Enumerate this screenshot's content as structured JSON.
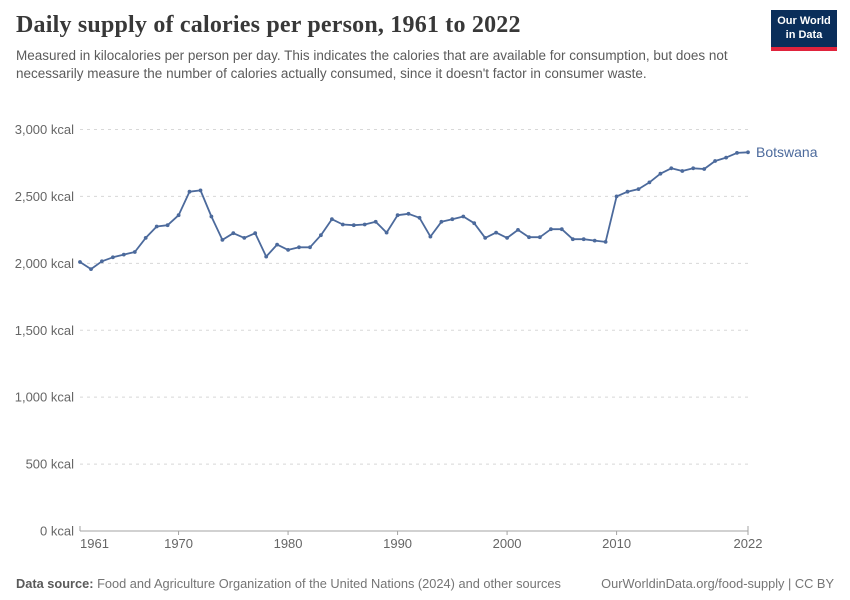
{
  "header": {
    "title": "Daily supply of calories per person, 1961 to 2022",
    "subtitle": "Measured in kilocalories per person per day. This indicates the calories that are available for consumption, but does not necessarily measure the number of calories actually consumed, since it doesn't factor in consumer waste.",
    "logo": {
      "line1": "Our World",
      "line2": "in Data"
    }
  },
  "chart_data": {
    "type": "line",
    "title": "Daily supply of calories per person, 1961 to 2022",
    "xlabel": "",
    "ylabel": "",
    "ylim": [
      0,
      3000
    ],
    "ytick_values": [
      0,
      500,
      1000,
      1500,
      2000,
      2500,
      3000
    ],
    "ytick_labels": [
      "0 kcal",
      "500 kcal",
      "1,000 kcal",
      "1,500 kcal",
      "2,000 kcal",
      "2,500 kcal",
      "3,000 kcal"
    ],
    "xticks": [
      1961,
      1970,
      1980,
      1990,
      2000,
      2010,
      2022
    ],
    "grid": "horizontal-dashed",
    "legend_position": "end-of-line-label",
    "x": [
      1961,
      1962,
      1963,
      1964,
      1965,
      1966,
      1967,
      1968,
      1969,
      1970,
      1971,
      1972,
      1973,
      1974,
      1975,
      1976,
      1977,
      1978,
      1979,
      1980,
      1981,
      1982,
      1983,
      1984,
      1985,
      1986,
      1987,
      1988,
      1989,
      1990,
      1991,
      1992,
      1993,
      1994,
      1995,
      1996,
      1997,
      1998,
      1999,
      2000,
      2001,
      2002,
      2003,
      2004,
      2005,
      2006,
      2007,
      2008,
      2009,
      2010,
      2011,
      2012,
      2013,
      2014,
      2015,
      2016,
      2017,
      2018,
      2019,
      2020,
      2021,
      2022
    ],
    "series": [
      {
        "name": "Botswana",
        "values": [
          2010,
          1957,
          2015,
          2045,
          2065,
          2085,
          2190,
          2275,
          2285,
          2360,
          2535,
          2545,
          2350,
          2175,
          2225,
          2190,
          2225,
          2050,
          2140,
          2100,
          2120,
          2120,
          2210,
          2330,
          2290,
          2285,
          2290,
          2310,
          2230,
          2360,
          2370,
          2340,
          2200,
          2310,
          2330,
          2350,
          2300,
          2190,
          2230,
          2190,
          2250,
          2195,
          2195,
          2255,
          2255,
          2180,
          2180,
          2170,
          2160,
          2500,
          2535,
          2555,
          2605,
          2670,
          2710,
          2690,
          2710,
          2705,
          2765,
          2790,
          2825,
          2830
        ]
      }
    ]
  },
  "footer": {
    "datasource_label": "Data source:",
    "datasource_text": " Food and Agriculture Organization of the United Nations (2024) and other sources",
    "credit": "OurWorldinData.org/food-supply | CC BY"
  },
  "colors": {
    "line": "#4c6a9c",
    "grid": "#d8d8d8",
    "axis": "#a3a3a3",
    "tick_text": "#666666",
    "title_text": "#383838",
    "subtitle_text": "#5b5b5b",
    "footer_text": "#757575",
    "logo_bg": "#0a2e5a",
    "logo_red": "#e0233c"
  }
}
